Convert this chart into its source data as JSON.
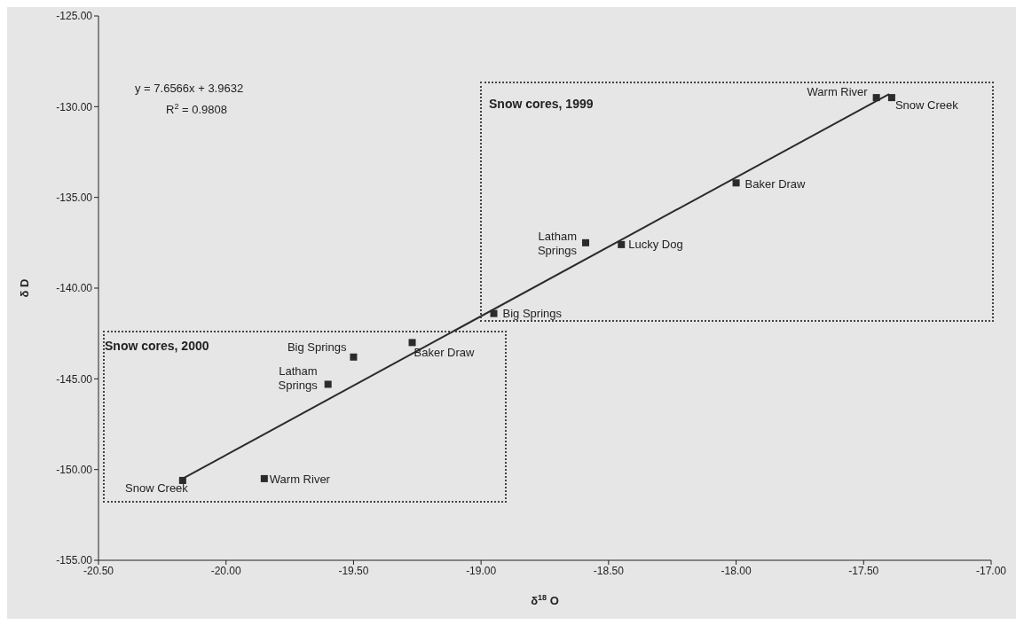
{
  "chart_data": {
    "type": "scatter",
    "xlabel": "δ$^{18}$ O",
    "ylabel": "δ D",
    "xlim": [
      -20.5,
      -17
    ],
    "xticks": [
      {
        "value": -20.5,
        "label": "-20.50"
      },
      {
        "value": -20,
        "label": "-20.00"
      },
      {
        "value": -19.5,
        "label": "-19.50"
      },
      {
        "value": -19,
        "label": "-19.00"
      },
      {
        "value": -18.5,
        "label": "-18.50"
      },
      {
        "value": -18,
        "label": "-18.00"
      },
      {
        "value": -17.5,
        "label": "-17.50"
      },
      {
        "value": -17,
        "label": "-17.00"
      }
    ],
    "ylim": [
      -155,
      -125
    ],
    "yticks": [
      {
        "value": -155,
        "label": "-155.00"
      },
      {
        "value": -150,
        "label": "-150.00"
      },
      {
        "value": -145,
        "label": "-145.00"
      },
      {
        "value": -140,
        "label": "-140.00"
      },
      {
        "value": -135,
        "label": "-135.00"
      },
      {
        "value": -130,
        "label": "-130.00"
      },
      {
        "value": -125,
        "label": "-125.00"
      }
    ],
    "grid": false,
    "legend": false,
    "marker": "square",
    "series": [
      {
        "color": "#2b2b2b",
        "x": [
          -18.95,
          -18.59,
          -18.45,
          -18.0,
          -17.45,
          -17.39
        ],
        "values": [
          -141.4,
          -137.5,
          -137.6,
          -134.2,
          -129.5,
          -129.5
        ]
      },
      {
        "color": "#2b2b2b",
        "x": [
          -20.17,
          -19.85,
          -19.6,
          -19.5,
          -19.27
        ],
        "values": [
          -150.6,
          -150.5,
          -145.3,
          -143.8,
          -143.0
        ]
      },
      {
        "type": "line",
        "color": "#2b2b2b",
        "line_style": "solid",
        "marker": "none",
        "x": [
          -20.17,
          -17.4
        ],
        "values": [
          -150.5,
          -129.3
        ]
      }
    ],
    "annotations": [
      "y = 7.6566x + 3.9632",
      "R$^{2}$ = 0.9808",
      "Snow cores, 1999",
      "Snow cores, 2000",
      {
        "text": "Big Springs",
        "x": -18.95,
        "y": -141.4
      },
      {
        "text": "Latham Springs",
        "x": -18.59,
        "y": -137.5
      },
      {
        "text": "Lucky Dog",
        "x": -18.45,
        "y": -137.6
      },
      {
        "text": "Baker Draw",
        "x": -18.0,
        "y": -134.2
      },
      {
        "text": "Warm River",
        "x": -17.45,
        "y": -129.5
      },
      {
        "text": "Snow Creek",
        "x": -17.39,
        "y": -129.5
      },
      {
        "text": "Snow Creek",
        "x": -20.17,
        "y": -150.6
      },
      {
        "text": "Warm River",
        "x": -19.85,
        "y": -150.5
      },
      {
        "text": "Latham Springs",
        "x": -19.6,
        "y": -145.3
      },
      {
        "text": "Big Springs",
        "x": -19.5,
        "y": -143.8
      },
      {
        "text": "Baker Draw",
        "x": -19.27,
        "y": -143.0
      }
    ]
  }
}
